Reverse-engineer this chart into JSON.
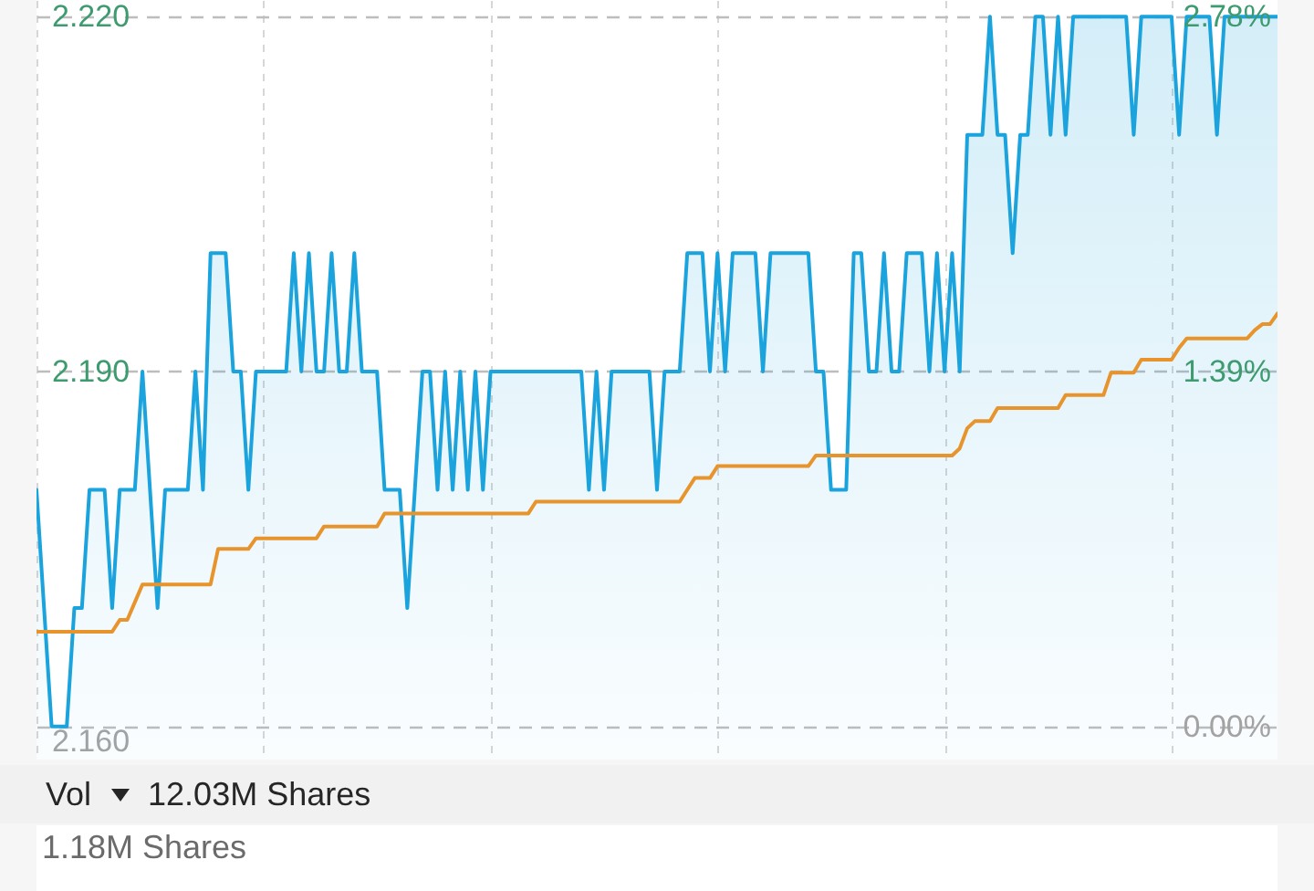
{
  "chart_data": {
    "type": "area",
    "categories": [
      null,
      null,
      null,
      null,
      null,
      null,
      null,
      null,
      null,
      null,
      null,
      null,
      null,
      null,
      null,
      null,
      null,
      null,
      null,
      null,
      null,
      null,
      null,
      null,
      null,
      null,
      null,
      null,
      null,
      null,
      null,
      null,
      null,
      null,
      null,
      null,
      null,
      null,
      null,
      null,
      null,
      null,
      null,
      null,
      null,
      null,
      null,
      null,
      null,
      null,
      null,
      null,
      null,
      null,
      null,
      null,
      null,
      null,
      null,
      null,
      null,
      null,
      null,
      null,
      null,
      null,
      null,
      null,
      null,
      null,
      null,
      null,
      null,
      null,
      null,
      null,
      null,
      null,
      null,
      null,
      null,
      null,
      null,
      null,
      null,
      null,
      null,
      null,
      null,
      null,
      null,
      null,
      null,
      null,
      null,
      null,
      null,
      null,
      null,
      null,
      null,
      null,
      null,
      null,
      null,
      null,
      null,
      null,
      null,
      null,
      null,
      null,
      null,
      null,
      null,
      null,
      null,
      null,
      null,
      null,
      null,
      null,
      null,
      null,
      null,
      null,
      null,
      null,
      null,
      null,
      null,
      null,
      null,
      null,
      null,
      null,
      null,
      null,
      null,
      null,
      null,
      null,
      null,
      null,
      null,
      null,
      null,
      null,
      null,
      null,
      null,
      null,
      null,
      null,
      null,
      null,
      null,
      null,
      null,
      null,
      null,
      null,
      null,
      null,
      null
    ],
    "series": [
      {
        "color": "#1aa3dc",
        "values": [
          2.18,
          2.17,
          2.16,
          2.16,
          2.16,
          2.17,
          2.17,
          2.18,
          2.18,
          2.18,
          2.17,
          2.18,
          2.18,
          2.18,
          2.19,
          2.18,
          2.17,
          2.18,
          2.18,
          2.18,
          2.18,
          2.19,
          2.18,
          2.2,
          2.2,
          2.2,
          2.19,
          2.19,
          2.18,
          2.19,
          2.19,
          2.19,
          2.19,
          2.19,
          2.2,
          2.19,
          2.2,
          2.19,
          2.19,
          2.2,
          2.19,
          2.19,
          2.2,
          2.19,
          2.19,
          2.19,
          2.18,
          2.18,
          2.18,
          2.17,
          2.18,
          2.19,
          2.19,
          2.18,
          2.19,
          2.18,
          2.19,
          2.18,
          2.19,
          2.18,
          2.19,
          2.19,
          2.19,
          2.19,
          2.19,
          2.19,
          2.19,
          2.19,
          2.19,
          2.19,
          2.19,
          2.19,
          2.19,
          2.18,
          2.19,
          2.18,
          2.19,
          2.19,
          2.19,
          2.19,
          2.19,
          2.19,
          2.18,
          2.19,
          2.19,
          2.19,
          2.2,
          2.2,
          2.2,
          2.19,
          2.2,
          2.19,
          2.2,
          2.2,
          2.2,
          2.2,
          2.19,
          2.2,
          2.2,
          2.2,
          2.2,
          2.2,
          2.2,
          2.19,
          2.19,
          2.18,
          2.18,
          2.18,
          2.2,
          2.2,
          2.19,
          2.19,
          2.2,
          2.19,
          2.19,
          2.2,
          2.2,
          2.2,
          2.19,
          2.2,
          2.19,
          2.2,
          2.19,
          2.21,
          2.21,
          2.21,
          2.22,
          2.21,
          2.21,
          2.2,
          2.21,
          2.21,
          2.22,
          2.22,
          2.21,
          2.22,
          2.21,
          2.22,
          2.22,
          2.22,
          2.22,
          2.22,
          2.22,
          2.22,
          2.22,
          2.21,
          2.22,
          2.22,
          2.22,
          2.22,
          2.22,
          2.21,
          2.22,
          2.22,
          2.22,
          2.22,
          2.21,
          2.22,
          2.22,
          2.22,
          2.22,
          2.22,
          2.22,
          2.22,
          2.22
        ]
      },
      {
        "type": "line",
        "color": "#e8942c",
        "values": [
          2.168,
          2.168,
          2.168,
          2.168,
          2.168,
          2.168,
          2.168,
          2.168,
          2.168,
          2.168,
          2.168,
          2.169,
          2.169,
          2.1705,
          2.172,
          2.172,
          2.172,
          2.172,
          2.172,
          2.172,
          2.172,
          2.172,
          2.172,
          2.172,
          2.175,
          2.175,
          2.175,
          2.175,
          2.175,
          2.1759,
          2.1759,
          2.1759,
          2.1759,
          2.1759,
          2.1759,
          2.1759,
          2.1759,
          2.1759,
          2.1769,
          2.1769,
          2.1769,
          2.1769,
          2.1769,
          2.1769,
          2.1769,
          2.1769,
          2.178,
          2.178,
          2.178,
          2.178,
          2.178,
          2.178,
          2.178,
          2.178,
          2.178,
          2.178,
          2.178,
          2.178,
          2.178,
          2.178,
          2.178,
          2.178,
          2.178,
          2.178,
          2.178,
          2.178,
          2.179,
          2.179,
          2.179,
          2.179,
          2.179,
          2.179,
          2.179,
          2.179,
          2.179,
          2.179,
          2.179,
          2.179,
          2.179,
          2.179,
          2.179,
          2.179,
          2.179,
          2.179,
          2.179,
          2.179,
          2.18,
          2.181,
          2.181,
          2.181,
          2.182,
          2.182,
          2.182,
          2.182,
          2.182,
          2.182,
          2.182,
          2.182,
          2.182,
          2.182,
          2.182,
          2.182,
          2.182,
          2.1829,
          2.1829,
          2.1829,
          2.1829,
          2.1829,
          2.1829,
          2.1829,
          2.1829,
          2.1829,
          2.1829,
          2.1829,
          2.1829,
          2.1829,
          2.1829,
          2.1829,
          2.1829,
          2.1829,
          2.1829,
          2.1829,
          2.1835,
          2.1852,
          2.1858,
          2.1858,
          2.1858,
          2.1869,
          2.1869,
          2.1869,
          2.1869,
          2.1869,
          2.1869,
          2.1869,
          2.1869,
          2.1869,
          2.188,
          2.188,
          2.188,
          2.188,
          2.188,
          2.188,
          2.1899,
          2.1899,
          2.1899,
          2.1899,
          2.191,
          2.191,
          2.191,
          2.191,
          2.191,
          2.192,
          2.1928,
          2.1928,
          2.1928,
          2.1928,
          2.1928,
          2.1928,
          2.1928,
          2.1928,
          2.1928,
          2.1935,
          2.194,
          2.194,
          2.1949
        ]
      }
    ],
    "ylim": [
      2.1572,
      2.2214
    ],
    "yticks": [
      {
        "value": 2.16,
        "label": "2.160"
      },
      {
        "value": 2.19,
        "label": "2.190"
      },
      {
        "value": 2.22,
        "label": "2.220"
      }
    ],
    "y2lim": [
      -0.13,
      2.845
    ],
    "y2ticks": [
      {
        "value": 0,
        "label": "0.00%"
      },
      {
        "value": 1.39,
        "label": "1.39%"
      },
      {
        "value": 2.78,
        "label": "2.78%"
      }
    ],
    "grid": true,
    "annotations": [
      "Vol",
      "12.03M Shares",
      "1.18M Shares"
    ]
  }
}
